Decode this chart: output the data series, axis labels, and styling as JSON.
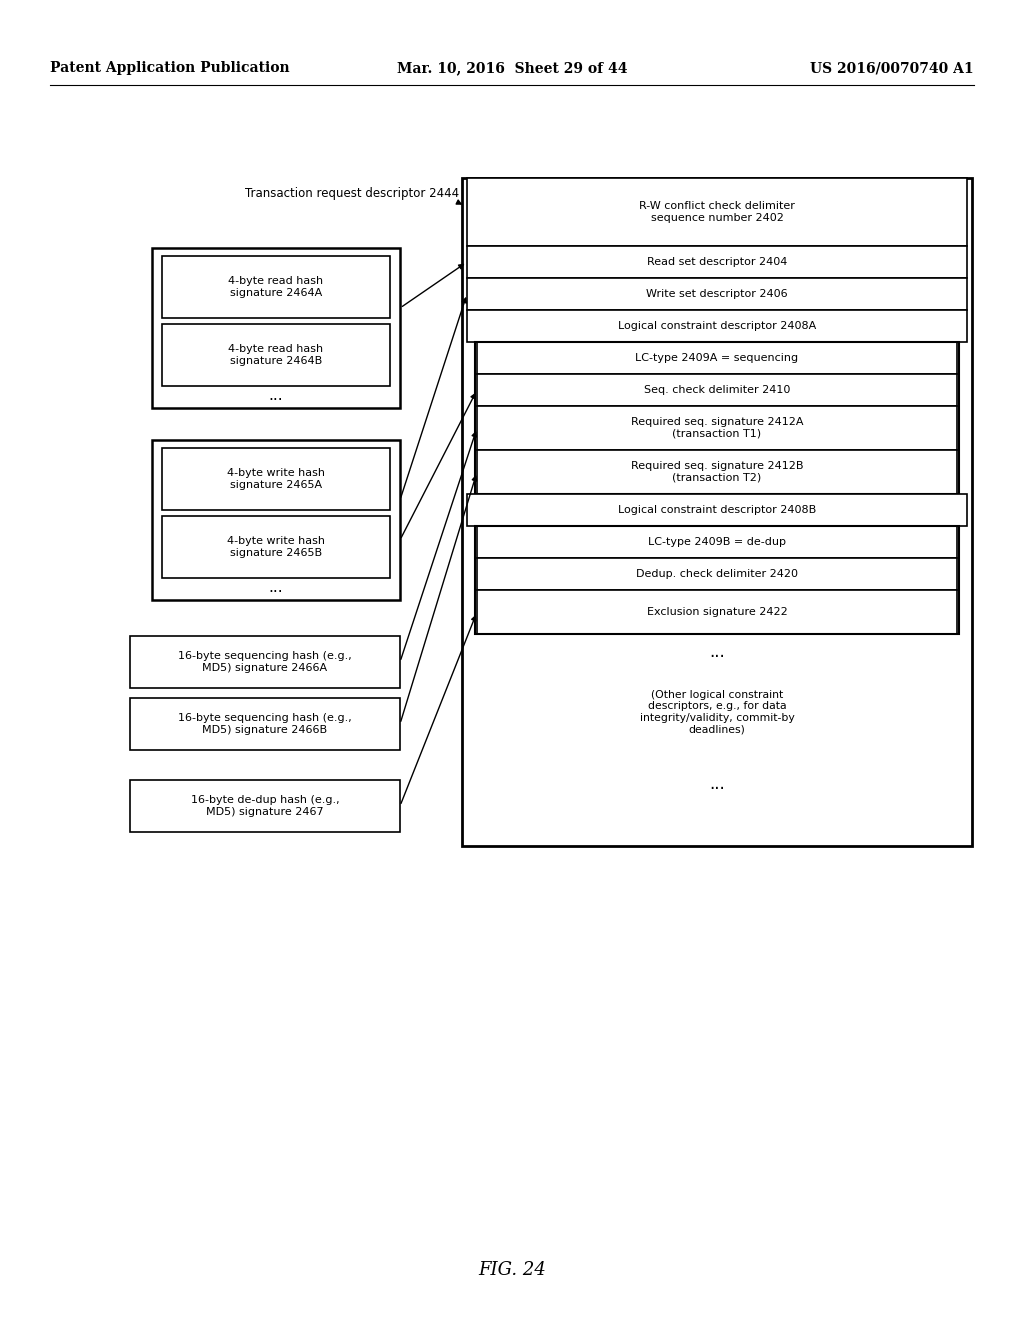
{
  "background_color": "#ffffff",
  "header_left": "Patent Application Publication",
  "header_mid": "Mar. 10, 2016  Sheet 29 of 44",
  "header_right": "US 2016/0070740 A1",
  "figure_label": "FIG. 24"
}
